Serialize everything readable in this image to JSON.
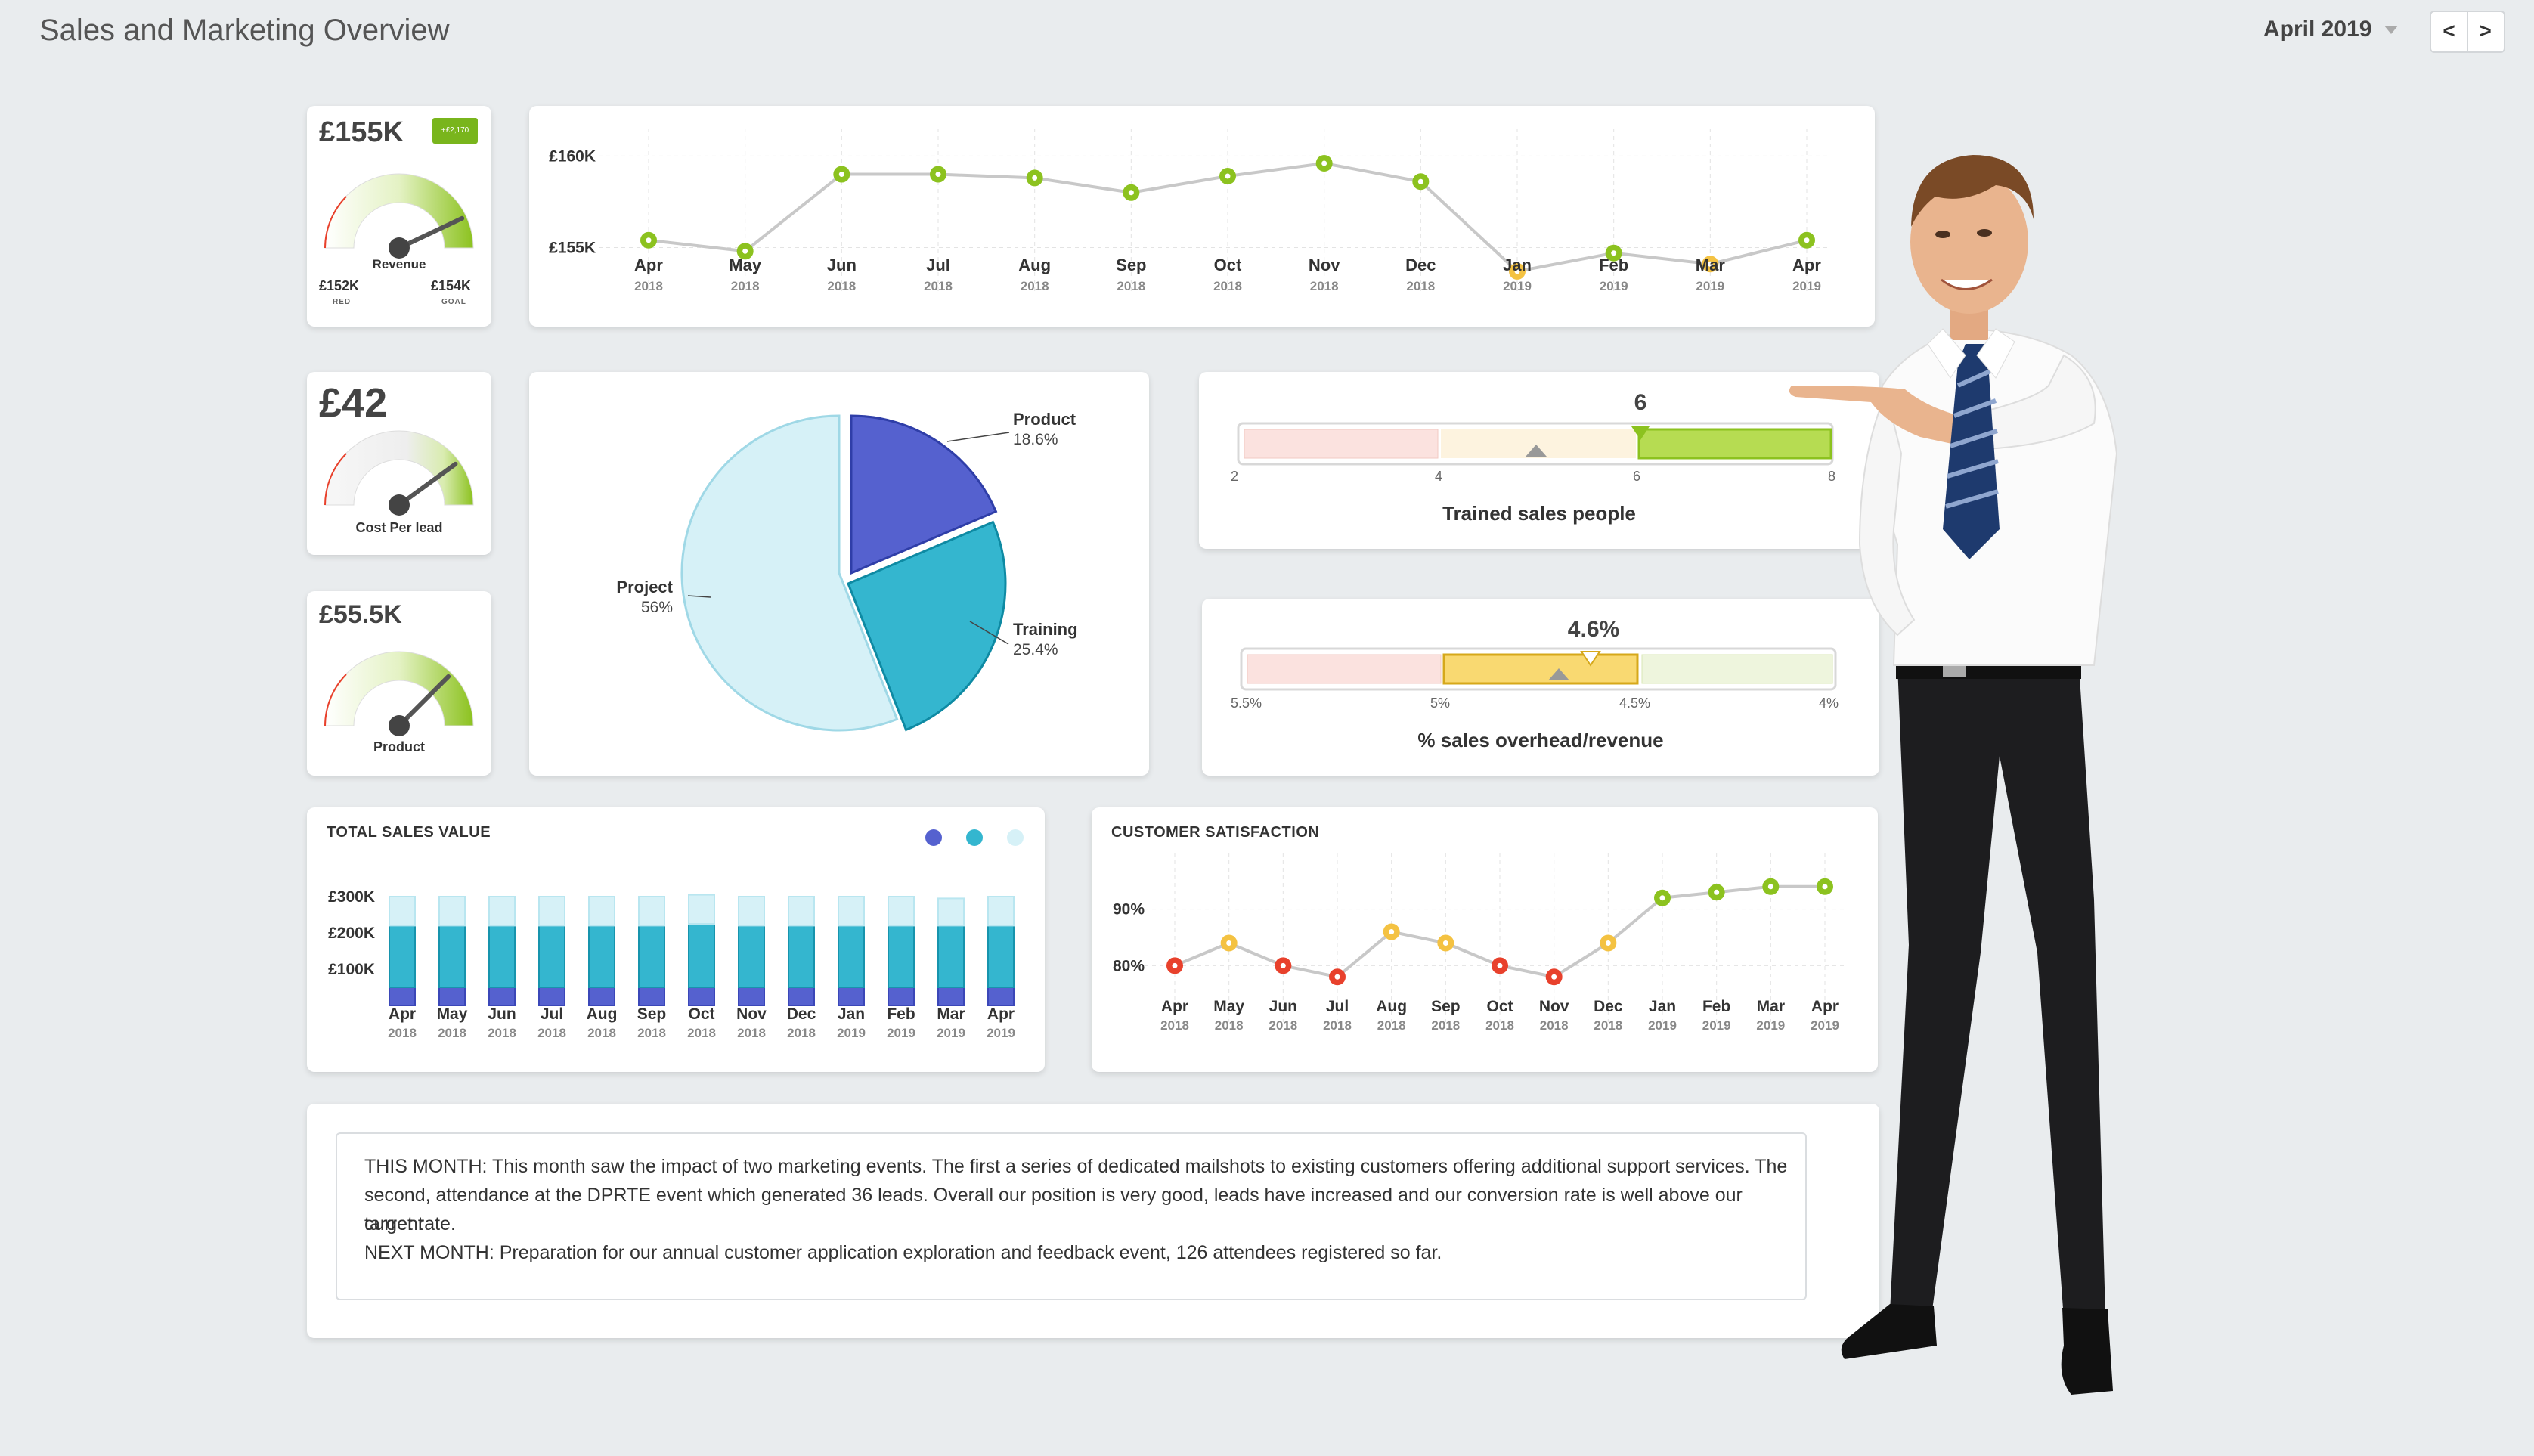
{
  "header": {
    "title": "Sales and Marketing Overview",
    "month": "April 2019",
    "prev": "<",
    "next": ">"
  },
  "colors": {
    "green": "#8cc21f",
    "yellow": "#f4c242",
    "red": "#e8412c",
    "blue_dark": "#5561cf",
    "teal": "#34b6cf",
    "light": "#d6f1f7"
  },
  "kpis": {
    "revenue": {
      "value": "£155K",
      "badge": "+£2,170",
      "label": "Revenue",
      "left_value": "£152K",
      "left_caption": "RED",
      "right_value": "£154K",
      "right_caption": "GOAL",
      "level": 0.86
    },
    "cost_per_lead": {
      "value": "£42",
      "label": "Cost Per lead",
      "level": 0.8
    },
    "product": {
      "value": "£55.5K",
      "label": "Product",
      "level": 0.75
    }
  },
  "pie": {
    "slices": [
      {
        "name": "Product",
        "pct": "18.6%"
      },
      {
        "name": "Training",
        "pct": "25.4%"
      },
      {
        "name": "Project",
        "pct": "56%"
      }
    ]
  },
  "bullet1": {
    "value": "6",
    "label": "Trained sales people",
    "ticks": [
      "2",
      "4",
      "6",
      "8"
    ]
  },
  "bullet2": {
    "value": "4.6%",
    "label": "% sales overhead/revenue",
    "ticks": [
      "5.5%",
      "5%",
      "4.5%",
      "4%"
    ]
  },
  "sections": {
    "total_sales": "TOTAL SALES VALUE",
    "customer_sat": "CUSTOMER SATISFACTION"
  },
  "notes": {
    "line1": "THIS MONTH: This month saw the impact of two marketing events. The first a series of dedicated mailshots to existing customers offering additional support services. The",
    "line2": "second, attendance at the DPRTE event which generated 36 leads. Overall our position is very good, leads have increased and our conversion rate is well above our current",
    "line3": "target rate.",
    "line4": "NEXT MONTH: Preparation for our annual customer application exploration and feedback event, 126 attendees registered so far."
  },
  "chart_data": [
    {
      "type": "line",
      "title": "",
      "x": [
        "Apr",
        "May",
        "Jun",
        "Jul",
        "Aug",
        "Sep",
        "Oct",
        "Nov",
        "Dec",
        "Jan",
        "Feb",
        "Mar",
        "Apr"
      ],
      "x_years": [
        "2018",
        "2018",
        "2018",
        "2018",
        "2018",
        "2018",
        "2018",
        "2018",
        "2018",
        "2019",
        "2019",
        "2019",
        "2019"
      ],
      "values": [
        155.4,
        154.8,
        159.0,
        159.0,
        158.8,
        158.0,
        158.9,
        159.6,
        158.6,
        153.7,
        154.7,
        154.1,
        155.4
      ],
      "point_status": [
        "green",
        "green",
        "green",
        "green",
        "green",
        "green",
        "green",
        "green",
        "green",
        "yellow",
        "green",
        "yellow",
        "green"
      ],
      "yticks": [
        "£155K",
        "£160K"
      ],
      "ylim": [
        152.5,
        161.5
      ],
      "grid": true
    },
    {
      "type": "pie",
      "categories": [
        "Product",
        "Training",
        "Project"
      ],
      "values": [
        18.6,
        25.4,
        56
      ]
    },
    {
      "type": "bar",
      "title": "TOTAL SALES VALUE",
      "categories": [
        "Apr",
        "May",
        "Jun",
        "Jul",
        "Aug",
        "Sep",
        "Oct",
        "Nov",
        "Dec",
        "Jan",
        "Feb",
        "Mar",
        "Apr"
      ],
      "x_years": [
        "2018",
        "2018",
        "2018",
        "2018",
        "2018",
        "2018",
        "2018",
        "2018",
        "2018",
        "2019",
        "2019",
        "2019",
        "2019"
      ],
      "stacked": true,
      "series": [
        {
          "values": [
            50,
            50,
            50,
            50,
            50,
            50,
            50,
            50,
            50,
            50,
            50,
            50,
            50
          ]
        },
        {
          "values": [
            170,
            170,
            170,
            170,
            170,
            170,
            175,
            170,
            170,
            170,
            170,
            170,
            170
          ]
        },
        {
          "values": [
            80,
            80,
            80,
            80,
            80,
            80,
            80,
            80,
            80,
            80,
            80,
            75,
            80
          ]
        }
      ],
      "yticks": [
        "£100K",
        "£200K",
        "£300K"
      ],
      "ylim": [
        0,
        300
      ],
      "legend": "top-right"
    },
    {
      "type": "line",
      "title": "CUSTOMER SATISFACTION",
      "x": [
        "Apr",
        "May",
        "Jun",
        "Jul",
        "Aug",
        "Sep",
        "Oct",
        "Nov",
        "Dec",
        "Jan",
        "Feb",
        "Mar",
        "Apr"
      ],
      "x_years": [
        "2018",
        "2018",
        "2018",
        "2018",
        "2018",
        "2018",
        "2018",
        "2018",
        "2018",
        "2019",
        "2019",
        "2019",
        "2019"
      ],
      "values": [
        80,
        84,
        80,
        78,
        86,
        84,
        80,
        78,
        84,
        92,
        93,
        94,
        94
      ],
      "point_status": [
        "red",
        "yellow",
        "red",
        "red",
        "yellow",
        "yellow",
        "red",
        "red",
        "yellow",
        "green",
        "green",
        "green",
        "green"
      ],
      "yticks": [
        "80%",
        "90%"
      ],
      "ylim": [
        70,
        100
      ],
      "grid": true
    }
  ]
}
